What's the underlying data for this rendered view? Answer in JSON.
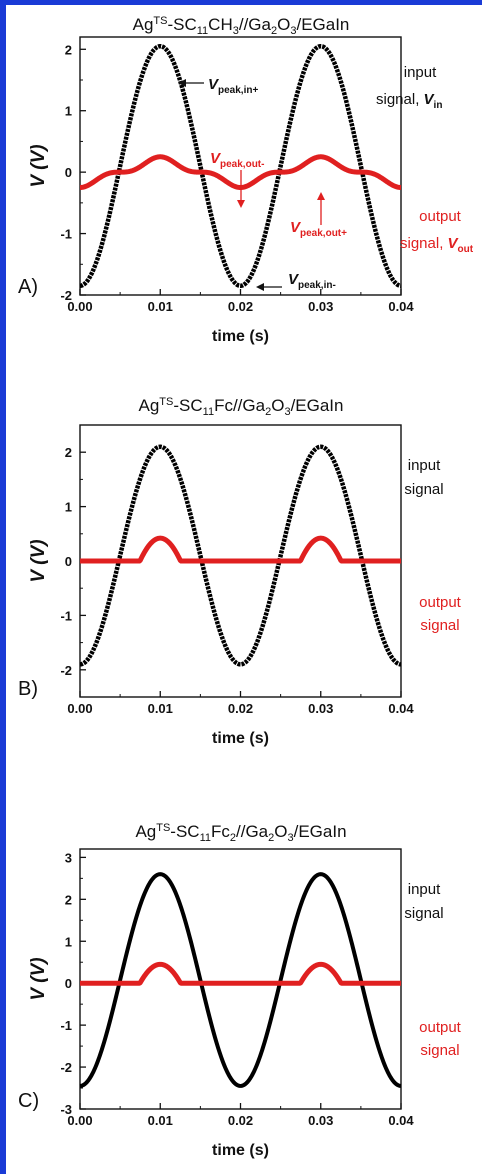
{
  "chart_data": [
    {
      "type": "line",
      "panel": "A)",
      "title": "Ag^TS-SC11CH3//Ga2O3/EGaIn",
      "xlabel": "time (s)",
      "ylabel": "V (V)",
      "xlim": [
        0,
        0.04
      ],
      "ylim": [
        -2.0,
        2.2
      ],
      "xticks": [
        "0.00",
        "0.01",
        "0.02",
        "0.03",
        "0.04"
      ],
      "yticks": [
        "-2",
        "-1",
        "0",
        "1",
        "2"
      ],
      "series": [
        {
          "name": "input signal",
          "color": "#000000",
          "amplitude": 1.95,
          "offset": 0.1,
          "points": [
            [
              0,
              -1.85
            ],
            [
              0.005,
              0.1
            ],
            [
              0.01,
              2.05
            ],
            [
              0.015,
              0.1
            ],
            [
              0.02,
              -1.85
            ],
            [
              0.025,
              0.1
            ],
            [
              0.03,
              2.05
            ],
            [
              0.035,
              0.1
            ],
            [
              0.04,
              -1.85
            ]
          ]
        },
        {
          "name": "output signal",
          "color": "#e02020",
          "points": [
            [
              0,
              -0.25
            ],
            [
              0.005,
              0.0
            ],
            [
              0.01,
              0.25
            ],
            [
              0.015,
              0.0
            ],
            [
              0.02,
              -0.25
            ],
            [
              0.025,
              0.0
            ],
            [
              0.03,
              0.25
            ],
            [
              0.035,
              0.0
            ],
            [
              0.04,
              -0.25
            ]
          ]
        }
      ],
      "annotations": {
        "input_label": "input",
        "input_label2": "signal,",
        "input_sym": "V",
        "input_sub": "in",
        "output_label": "output",
        "output_label2": "signal,",
        "output_sym": "V",
        "output_sub": "out",
        "peak_sym": "V",
        "peak_in_plus": "peak,in+",
        "peak_in_minus": "peak,in-",
        "peak_out_minus": "peak,out-",
        "peak_out_plus": "peak,out+"
      }
    },
    {
      "type": "line",
      "panel": "B)",
      "title": "Ag^TS-SC11Fc//Ga2O3/EGaIn",
      "xlabel": "time (s)",
      "ylabel": "V (V)",
      "xlim": [
        0,
        0.04
      ],
      "ylim": [
        -2.5,
        2.5
      ],
      "xticks": [
        "0.00",
        "0.01",
        "0.02",
        "0.03",
        "0.04"
      ],
      "yticks": [
        "-2",
        "-1",
        "0",
        "1",
        "2"
      ],
      "series": [
        {
          "name": "input signal",
          "color": "#000000",
          "points": [
            [
              0,
              -1.9
            ],
            [
              0.005,
              0.1
            ],
            [
              0.01,
              2.1
            ],
            [
              0.015,
              0.1
            ],
            [
              0.02,
              -1.9
            ],
            [
              0.025,
              0.1
            ],
            [
              0.03,
              2.1
            ],
            [
              0.035,
              0.1
            ],
            [
              0.04,
              -1.9
            ]
          ]
        },
        {
          "name": "output signal",
          "color": "#e02020",
          "points": [
            [
              0,
              0.0
            ],
            [
              0.0075,
              0.0
            ],
            [
              0.01,
              0.42
            ],
            [
              0.0125,
              0.0
            ],
            [
              0.0275,
              0.0
            ],
            [
              0.03,
              0.42
            ],
            [
              0.0325,
              0.0
            ],
            [
              0.04,
              0.0
            ]
          ]
        }
      ],
      "annotations": {
        "input_label": "input",
        "input_label2": "signal",
        "output_label": "output",
        "output_label2": "signal"
      }
    },
    {
      "type": "line",
      "panel": "C)",
      "title": "Ag^TS-SC11Fc2//Ga2O3/EGaIn",
      "xlabel": "time (s)",
      "ylabel": "V (V)",
      "xlim": [
        0,
        0.04
      ],
      "ylim": [
        -3,
        3.2
      ],
      "xticks": [
        "0.00",
        "0.01",
        "0.02",
        "0.03",
        "0.04"
      ],
      "yticks": [
        "-3",
        "-2",
        "-1",
        "0",
        "1",
        "2",
        "3"
      ],
      "series": [
        {
          "name": "input signal",
          "color": "#000000",
          "points": [
            [
              0,
              -2.45
            ],
            [
              0.005,
              0.08
            ],
            [
              0.01,
              2.6
            ],
            [
              0.015,
              0.08
            ],
            [
              0.02,
              -2.45
            ],
            [
              0.025,
              0.08
            ],
            [
              0.03,
              2.6
            ],
            [
              0.035,
              0.08
            ],
            [
              0.04,
              -2.45
            ]
          ]
        },
        {
          "name": "output signal",
          "color": "#e02020",
          "points": [
            [
              0,
              0.0
            ],
            [
              0.0075,
              0.0
            ],
            [
              0.01,
              0.45
            ],
            [
              0.0125,
              0.0
            ],
            [
              0.0275,
              0.0
            ],
            [
              0.03,
              0.45
            ],
            [
              0.0325,
              0.0
            ],
            [
              0.04,
              0.0
            ]
          ]
        }
      ],
      "annotations": {
        "input_label": "input",
        "input_label2": "signal",
        "output_label": "output",
        "output_label2": "signal"
      }
    }
  ],
  "title_parts": [
    {
      "pre": "Ag",
      "sup": "TS",
      "mid": "-SC",
      "s1": "11",
      "a": "CH",
      "s2": "3",
      "b": "//Ga",
      "s3": "2",
      "c": "O",
      "s4": "3",
      "d": "/EGaIn"
    },
    {
      "pre": "Ag",
      "sup": "TS",
      "mid": "-SC",
      "s1": "11",
      "a": "Fc",
      "s2": "",
      "b": "//Ga",
      "s3": "2",
      "c": "O",
      "s4": "3",
      "d": "/EGaIn"
    },
    {
      "pre": "Ag",
      "sup": "TS",
      "mid": "-SC",
      "s1": "11",
      "a": "Fc",
      "s2": "2",
      "b": "//Ga",
      "s3": "2",
      "c": "O",
      "s4": "3",
      "d": "/EGaIn"
    }
  ]
}
